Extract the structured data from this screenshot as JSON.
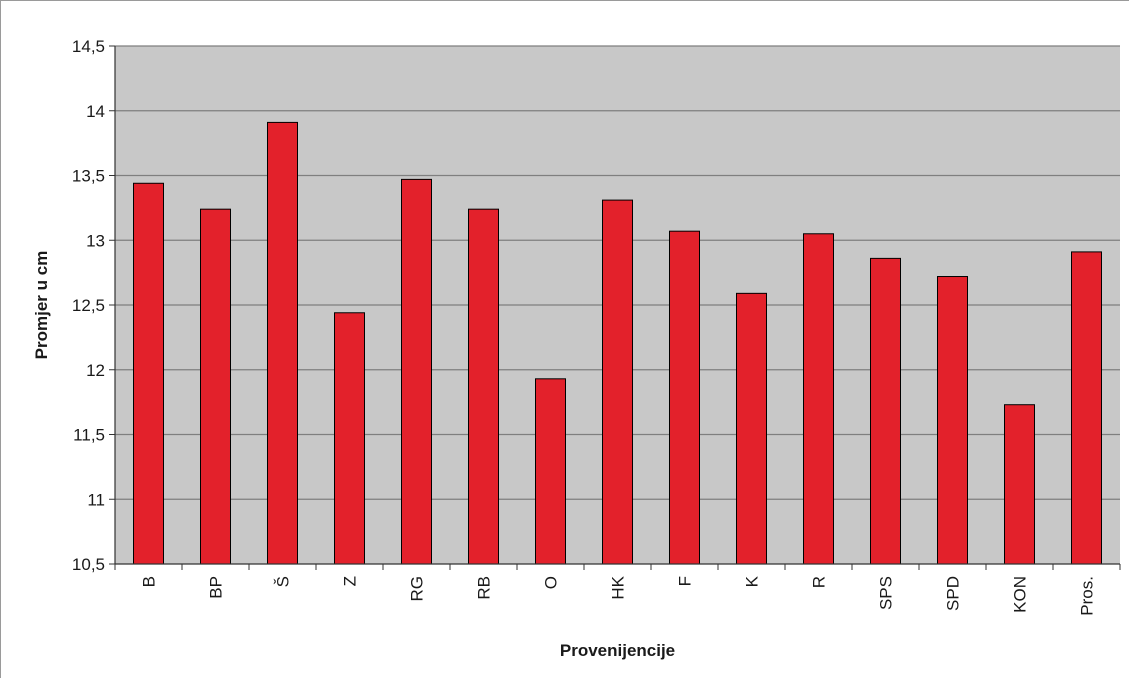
{
  "chart_data": {
    "type": "bar",
    "title": "",
    "xlabel": "Provenijencije",
    "ylabel": "Promjer u cm",
    "categories": [
      "B",
      "BP",
      "Š",
      "Z",
      "RG",
      "RB",
      "O",
      "HK",
      "F",
      "K",
      "R",
      "SPS",
      "SPD",
      "KON",
      "Pros."
    ],
    "values": [
      13.44,
      13.24,
      13.91,
      12.44,
      13.47,
      13.24,
      11.93,
      13.31,
      13.07,
      12.59,
      13.05,
      12.86,
      12.72,
      11.73,
      12.91
    ],
    "ylim": [
      10.5,
      14.5
    ],
    "yticks": [
      "10,5",
      "11",
      "11,5",
      "12",
      "12,5",
      "13",
      "13,5",
      "14",
      "14,5"
    ],
    "grid": true,
    "colors": {
      "bar": "#e3212b",
      "plot_background": "#c8c8c8",
      "gridline": "#7f7f7f"
    }
  }
}
